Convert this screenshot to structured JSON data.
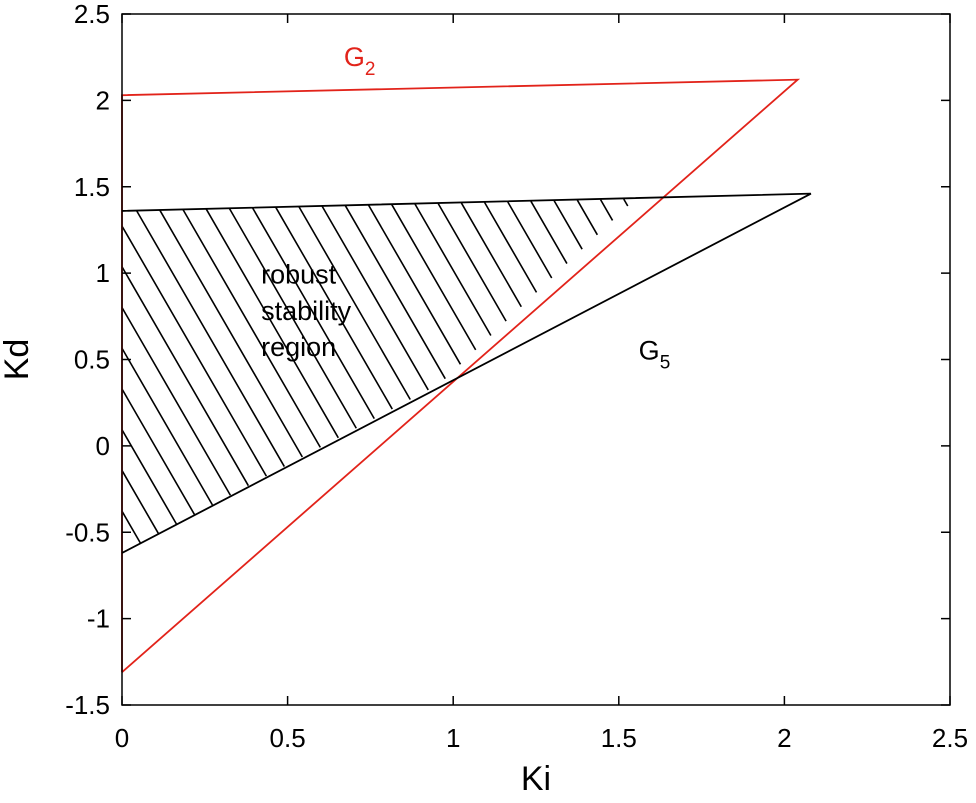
{
  "chart_data": {
    "type": "line",
    "title": "",
    "xlabel": "Ki",
    "ylabel": "Kd",
    "xlim": [
      0,
      2.5
    ],
    "ylim": [
      -1.5,
      2.5
    ],
    "xticks": [
      0,
      0.5,
      1,
      1.5,
      2,
      2.5
    ],
    "xtick_labels": [
      "0",
      "0.5",
      "1",
      "1.5",
      "2",
      "2.5"
    ],
    "yticks": [
      -1.5,
      -1,
      -0.5,
      0,
      0.5,
      1,
      1.5,
      2,
      2.5
    ],
    "ytick_labels": [
      "-1.5",
      "-1",
      "-0.5",
      "0",
      "0.5",
      "1",
      "1.5",
      "2",
      "2.5"
    ],
    "grid": false,
    "series": [
      {
        "label_main": "G",
        "label_sub": "2",
        "color": "#e2231a",
        "points": [
          [
            0,
            -1.31
          ],
          [
            0,
            2.03
          ],
          [
            2.04,
            2.12
          ],
          [
            0,
            -1.31
          ]
        ],
        "label_at": [
          0.67,
          2.2
        ]
      },
      {
        "label_main": "G",
        "label_sub": "5",
        "color": "#000000",
        "points": [
          [
            0,
            -0.62
          ],
          [
            2.08,
            1.46
          ],
          [
            0,
            1.36
          ]
        ],
        "label_at": [
          1.56,
          0.5
        ]
      }
    ],
    "hatched_region": {
      "color": "#000000",
      "vertices": [
        [
          0,
          1.36
        ],
        [
          1.55,
          1.43
        ],
        [
          0.96,
          0.36
        ],
        [
          0,
          -0.62
        ]
      ],
      "spacing_x": 0.071
    },
    "annotations": [
      {
        "lines": [
          "robust",
          "stability",
          "region"
        ],
        "at": [
          0.42,
          0.94
        ],
        "line_step": 0.21
      }
    ]
  }
}
